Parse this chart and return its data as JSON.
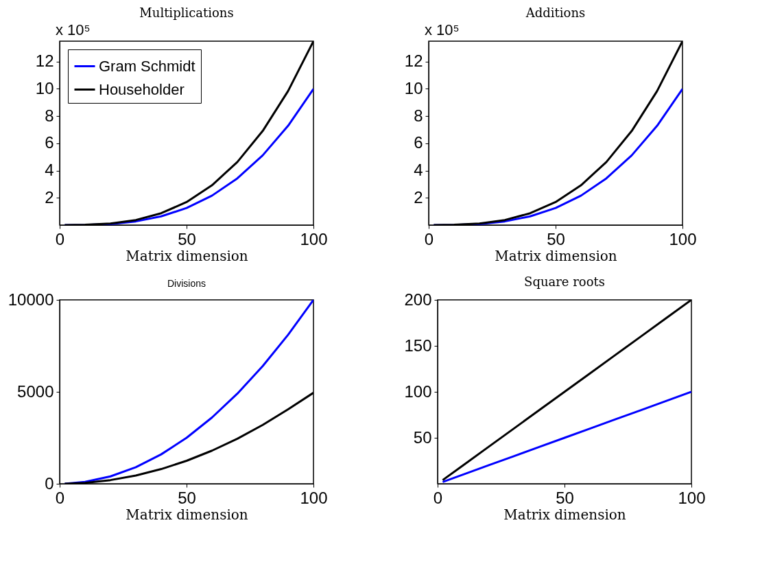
{
  "chart_data": [
    {
      "type": "line",
      "title": "Multiplications",
      "xlabel": "Matrix dimension",
      "annotations": [
        "x 10⁵"
      ],
      "legend": "top left",
      "grid": false,
      "x": [
        2,
        10,
        20,
        30,
        40,
        50,
        60,
        70,
        80,
        90,
        100
      ],
      "xlim": [
        0,
        100
      ],
      "xticks": [
        0,
        50,
        100
      ],
      "ylim": [
        0,
        13.5
      ],
      "yticks": [
        2,
        4,
        6,
        8,
        10,
        12
      ],
      "series": [
        {
          "name": "Gram Schmidt",
          "color": "#0000ff",
          "values": [
            0,
            0.01,
            0.08,
            0.27,
            0.64,
            1.25,
            2.16,
            3.43,
            5.12,
            7.29,
            10
          ]
        },
        {
          "name": "Householder",
          "color": "#000000",
          "values": [
            0,
            0.02,
            0.11,
            0.37,
            0.87,
            1.69,
            2.92,
            4.63,
            6.91,
            9.84,
            13.5
          ]
        }
      ]
    },
    {
      "type": "line",
      "title": "Additions",
      "xlabel": "Matrix dimension",
      "annotations": [
        "x 10⁵"
      ],
      "grid": false,
      "x": [
        2,
        10,
        20,
        30,
        40,
        50,
        60,
        70,
        80,
        90,
        100
      ],
      "xlim": [
        0,
        100
      ],
      "xticks": [
        0,
        50,
        100
      ],
      "ylim": [
        0,
        13.5
      ],
      "yticks": [
        2,
        4,
        6,
        8,
        10,
        12
      ],
      "series": [
        {
          "color": "#0000ff",
          "values": [
            0,
            0.01,
            0.08,
            0.27,
            0.64,
            1.25,
            2.16,
            3.43,
            5.12,
            7.29,
            10
          ]
        },
        {
          "color": "#000000",
          "values": [
            0,
            0.02,
            0.11,
            0.37,
            0.87,
            1.69,
            2.92,
            4.63,
            6.91,
            9.84,
            13.5
          ]
        }
      ]
    },
    {
      "type": "line",
      "title": "Divisions",
      "xlabel": "Matrix dimension",
      "grid": false,
      "x": [
        2,
        10,
        20,
        30,
        40,
        50,
        60,
        70,
        80,
        90,
        100
      ],
      "xlim": [
        0,
        100
      ],
      "xticks": [
        0,
        50,
        100
      ],
      "ylim": [
        0,
        10000
      ],
      "yticks": [
        0,
        5000,
        10000
      ],
      "series": [
        {
          "color": "#0000ff",
          "values": [
            0,
            100,
            400,
            900,
            1600,
            2500,
            3600,
            4900,
            6400,
            8100,
            10000
          ]
        },
        {
          "color": "#000000",
          "values": [
            0,
            50,
            200,
            450,
            800,
            1250,
            1800,
            2450,
            3200,
            4050,
            4950
          ]
        }
      ]
    },
    {
      "type": "line",
      "title": "Square roots",
      "xlabel": "Matrix dimension",
      "grid": false,
      "x": [
        2,
        10,
        20,
        30,
        40,
        50,
        60,
        70,
        80,
        90,
        100
      ],
      "xlim": [
        0,
        100
      ],
      "xticks": [
        0,
        50,
        100
      ],
      "ylim": [
        0,
        200
      ],
      "yticks": [
        50,
        100,
        150,
        200
      ],
      "series": [
        {
          "color": "#0000ff",
          "values": [
            2,
            10,
            20,
            30,
            40,
            50,
            60,
            70,
            80,
            90,
            100
          ]
        },
        {
          "color": "#000000",
          "values": [
            4,
            20,
            40,
            60,
            80,
            100,
            120,
            140,
            160,
            180,
            200
          ]
        }
      ]
    }
  ]
}
